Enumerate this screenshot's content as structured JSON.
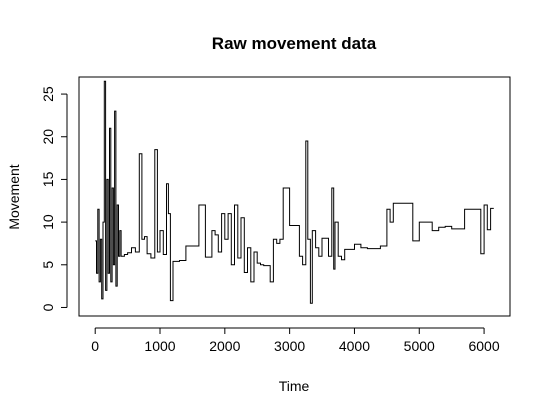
{
  "chart_data": {
    "type": "line",
    "title": "Raw movement data",
    "xlabel": "Time",
    "ylabel": "Movement",
    "xlim": [
      -250,
      6400
    ],
    "ylim": [
      -1,
      27
    ],
    "xticks": [
      0,
      1000,
      2000,
      3000,
      4000,
      5000,
      6000
    ],
    "yticks": [
      0,
      5,
      10,
      15,
      20,
      25
    ],
    "grid": false,
    "line_color": "#000000",
    "x": [
      0,
      20,
      40,
      60,
      80,
      100,
      120,
      140,
      160,
      180,
      200,
      220,
      240,
      260,
      280,
      300,
      320,
      340,
      360,
      380,
      400,
      450,
      500,
      560,
      620,
      680,
      720,
      760,
      800,
      860,
      920,
      960,
      1000,
      1050,
      1100,
      1130,
      1160,
      1200,
      1300,
      1400,
      1500,
      1600,
      1700,
      1800,
      1850,
      1900,
      1950,
      2000,
      2050,
      2100,
      2150,
      2200,
      2250,
      2300,
      2350,
      2400,
      2450,
      2500,
      2550,
      2600,
      2700,
      2750,
      2800,
      2850,
      2900,
      3000,
      3100,
      3150,
      3200,
      3250,
      3280,
      3320,
      3350,
      3400,
      3450,
      3500,
      3550,
      3600,
      3650,
      3680,
      3700,
      3750,
      3800,
      3850,
      3900,
      4000,
      4100,
      4200,
      4300,
      4400,
      4500,
      4550,
      4600,
      4700,
      4800,
      4900,
      5000,
      5100,
      5200,
      5300,
      5400,
      5500,
      5600,
      5700,
      5800,
      5900,
      5950,
      6000,
      6050,
      6100,
      6150
    ],
    "y": [
      7.8,
      4,
      11.5,
      3,
      8,
      1,
      10,
      26.5,
      2,
      15,
      4,
      21,
      3,
      14,
      5,
      23,
      2.5,
      12,
      6,
      9,
      6,
      6.2,
      6.4,
      7,
      6.5,
      18,
      8,
      8.3,
      6.3,
      5.8,
      18.5,
      6.5,
      9,
      6.2,
      14.5,
      11,
      0.8,
      5.4,
      5.5,
      7.2,
      7.2,
      12,
      5.9,
      9,
      8.5,
      6.5,
      11,
      8,
      11,
      5,
      12,
      5.8,
      10.5,
      4.1,
      7,
      3,
      6.5,
      5.2,
      5,
      4.9,
      3,
      8,
      7.5,
      8,
      14,
      9.6,
      9.6,
      6,
      5,
      19.5,
      8,
      0.5,
      9,
      7,
      6,
      8.1,
      8.1,
      6,
      14,
      4.5,
      10,
      6,
      5.6,
      6.8,
      6.8,
      7.4,
      7,
      6.9,
      6.9,
      7.2,
      11.5,
      10,
      12.2,
      12.2,
      12.2,
      7.8,
      10,
      10,
      9,
      9.4,
      9.5,
      9.2,
      9.2,
      11.5,
      11.5,
      11.5,
      6.3,
      12,
      9.1,
      11.6,
      11.6
    ]
  }
}
